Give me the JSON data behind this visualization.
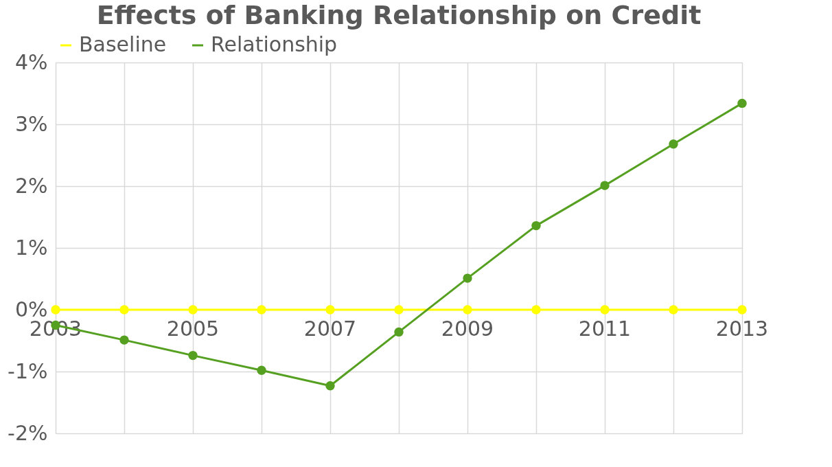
{
  "chart_data": {
    "type": "line",
    "title": "Effects of Banking Relationship on Credit",
    "x": [
      2003,
      2004,
      2005,
      2006,
      2007,
      2008,
      2009,
      2010,
      2011,
      2012,
      2013
    ],
    "series": [
      {
        "name": "Baseline",
        "color": "#ffff00",
        "values": [
          0,
          0,
          0,
          0,
          0,
          0,
          0,
          0,
          0,
          0,
          0
        ]
      },
      {
        "name": "Relationship",
        "color": "#56a021",
        "values": [
          -0.25,
          -0.49,
          -0.74,
          -0.98,
          -1.23,
          -0.36,
          0.51,
          1.36,
          2.01,
          2.68,
          3.34
        ]
      }
    ],
    "xlim": [
      2003,
      2013
    ],
    "xticks": [
      2003,
      {
        "value": 2004,
        "label": null
      },
      2005,
      {
        "value": 2006,
        "label": null
      },
      2007,
      {
        "value": 2008,
        "label": null
      },
      2009,
      {
        "value": 2010,
        "label": null
      },
      2011,
      {
        "value": 2012,
        "label": null
      },
      2013
    ],
    "ylim": [
      -2,
      4
    ],
    "yticks": [
      {
        "value": -2,
        "label": "-2%"
      },
      {
        "value": -1,
        "label": "-1%"
      },
      {
        "value": 0,
        "label": "0%"
      },
      {
        "value": 1,
        "label": "1%"
      },
      {
        "value": 2,
        "label": "2%"
      },
      {
        "value": 3,
        "label": "3%"
      },
      {
        "value": 4,
        "label": "4%"
      }
    ],
    "grid": true,
    "legend": "top",
    "marker": "circle",
    "line_style": "solid"
  }
}
